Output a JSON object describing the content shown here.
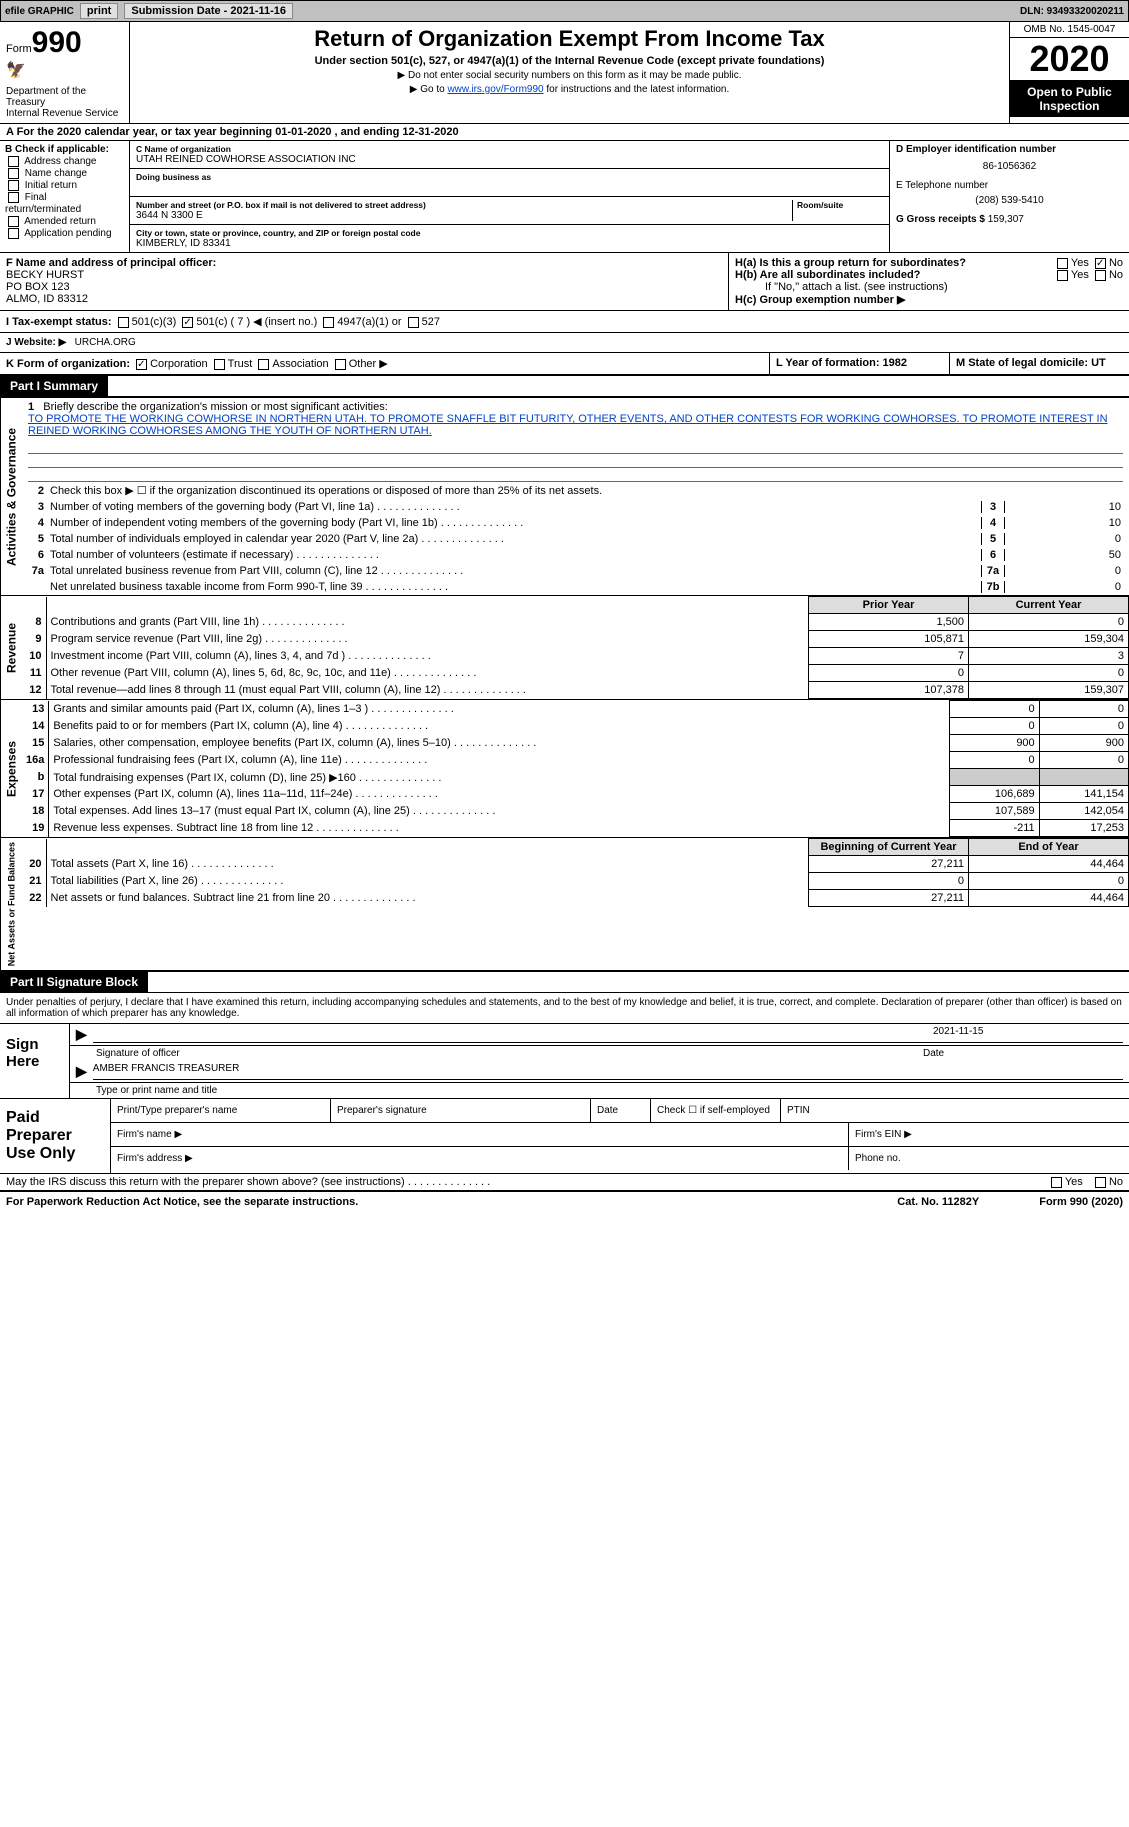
{
  "topbar": {
    "efile": "efile GRAPHIC",
    "print": "print",
    "sub_date_lbl": "Submission Date - 2021-11-16",
    "dln": "DLN: 93493320020211"
  },
  "header": {
    "form_lbl": "Form",
    "form_num": "990",
    "dept": "Department of the Treasury\nInternal Revenue Service",
    "title": "Return of Organization Exempt From Income Tax",
    "sub": "Under section 501(c), 527, or 4947(a)(1) of the Internal Revenue Code (except private foundations)",
    "note1": "▶ Do not enter social security numbers on this form as it may be made public.",
    "note2_pre": "▶ Go to ",
    "note2_link": "www.irs.gov/Form990",
    "note2_post": " for instructions and the latest information.",
    "omb": "OMB No. 1545-0047",
    "year": "2020",
    "insp": "Open to Public Inspection"
  },
  "line_a": "A For the 2020 calendar year, or tax year beginning 01-01-2020   , and ending 12-31-2020",
  "col_b": {
    "hdr": "B Check if applicable:",
    "items": [
      "Address change",
      "Name change",
      "Initial return",
      "Final return/terminated",
      "Amended return",
      "Application pending"
    ]
  },
  "col_c": {
    "name_lbl": "C Name of organization",
    "name": "UTAH REINED COWHORSE ASSOCIATION INC",
    "dba_lbl": "Doing business as",
    "addr_lbl": "Number and street (or P.O. box if mail is not delivered to street address)",
    "room_lbl": "Room/suite",
    "addr": "3644 N 3300 E",
    "city_lbl": "City or town, state or province, country, and ZIP or foreign postal code",
    "city": "KIMBERLY, ID  83341"
  },
  "col_d": {
    "ein_lbl": "D Employer identification number",
    "ein": "86-1056362",
    "tel_lbl": "E Telephone number",
    "tel": "(208) 539-5410",
    "gross_lbl": "G Gross receipts $",
    "gross": "159,307"
  },
  "row_f": {
    "lbl": "F  Name and address of principal officer:",
    "name": "BECKY HURST",
    "addr1": "PO BOX 123",
    "addr2": "ALMO, ID  83312"
  },
  "row_h": {
    "ha": "H(a)  Is this a group return for subordinates?",
    "hb": "H(b)  Are all subordinates included?",
    "hb_note": "If \"No,\" attach a list. (see instructions)",
    "hc": "H(c)  Group exemption number ▶",
    "yes": "Yes",
    "no": "No"
  },
  "row_i": {
    "lbl": "I   Tax-exempt status:",
    "o1": "501(c)(3)",
    "o2": "501(c) ( 7 ) ◀ (insert no.)",
    "o3": "4947(a)(1) or",
    "o4": "527"
  },
  "row_j": {
    "lbl": "J   Website: ▶",
    "val": "URCHA.ORG"
  },
  "row_k": {
    "lbl": "K Form of organization:",
    "o1": "Corporation",
    "o2": "Trust",
    "o3": "Association",
    "o4": "Other ▶",
    "l": "L Year of formation: 1982",
    "m": "M State of legal domicile: UT"
  },
  "part1": {
    "hdr": "Part I      Summary",
    "vert1": "Activities & Governance",
    "q1_lbl": "Briefly describe the organization's mission or most significant activities:",
    "q1_txt": "TO PROMOTE THE WORKING COWHORSE IN NORTHERN UTAH. TO PROMOTE SNAFFLE BIT FUTURITY, OTHER EVENTS, AND OTHER CONTESTS FOR WORKING COWHORSES. TO PROMOTE INTEREST IN REINED WORKING COWHORSES AMONG THE YOUTH OF NORTHERN UTAH.",
    "q2": "Check this box ▶ ☐  if the organization discontinued its operations or disposed of more than 25% of its net assets.",
    "lines": [
      {
        "n": "3",
        "t": "Number of voting members of the governing body (Part VI, line 1a)",
        "b": "3",
        "v": "10"
      },
      {
        "n": "4",
        "t": "Number of independent voting members of the governing body (Part VI, line 1b)",
        "b": "4",
        "v": "10"
      },
      {
        "n": "5",
        "t": "Total number of individuals employed in calendar year 2020 (Part V, line 2a)",
        "b": "5",
        "v": "0"
      },
      {
        "n": "6",
        "t": "Total number of volunteers (estimate if necessary)",
        "b": "6",
        "v": "50"
      },
      {
        "n": "7a",
        "t": "Total unrelated business revenue from Part VIII, column (C), line 12",
        "b": "7a",
        "v": "0"
      },
      {
        "n": "",
        "t": "Net unrelated business taxable income from Form 990-T, line 39",
        "b": "7b",
        "v": "0"
      }
    ],
    "col_prior": "Prior Year",
    "col_curr": "Current Year",
    "vert2": "Revenue",
    "rev": [
      {
        "n": "8",
        "t": "Contributions and grants (Part VIII, line 1h)",
        "p": "1,500",
        "c": "0"
      },
      {
        "n": "9",
        "t": "Program service revenue (Part VIII, line 2g)",
        "p": "105,871",
        "c": "159,304"
      },
      {
        "n": "10",
        "t": "Investment income (Part VIII, column (A), lines 3, 4, and 7d )",
        "p": "7",
        "c": "3"
      },
      {
        "n": "11",
        "t": "Other revenue (Part VIII, column (A), lines 5, 6d, 8c, 9c, 10c, and 11e)",
        "p": "0",
        "c": "0"
      },
      {
        "n": "12",
        "t": "Total revenue—add lines 8 through 11 (must equal Part VIII, column (A), line 12)",
        "p": "107,378",
        "c": "159,307"
      }
    ],
    "vert3": "Expenses",
    "exp": [
      {
        "n": "13",
        "t": "Grants and similar amounts paid (Part IX, column (A), lines 1–3 )",
        "p": "0",
        "c": "0"
      },
      {
        "n": "14",
        "t": "Benefits paid to or for members (Part IX, column (A), line 4)",
        "p": "0",
        "c": "0"
      },
      {
        "n": "15",
        "t": "Salaries, other compensation, employee benefits (Part IX, column (A), lines 5–10)",
        "p": "900",
        "c": "900"
      },
      {
        "n": "16a",
        "t": "Professional fundraising fees (Part IX, column (A), line 11e)",
        "p": "0",
        "c": "0"
      },
      {
        "n": "b",
        "t": "Total fundraising expenses (Part IX, column (D), line 25) ▶160",
        "p": "",
        "c": "",
        "shade": true
      },
      {
        "n": "17",
        "t": "Other expenses (Part IX, column (A), lines 11a–11d, 11f–24e)",
        "p": "106,689",
        "c": "141,154"
      },
      {
        "n": "18",
        "t": "Total expenses. Add lines 13–17 (must equal Part IX, column (A), line 25)",
        "p": "107,589",
        "c": "142,054"
      },
      {
        "n": "19",
        "t": "Revenue less expenses. Subtract line 18 from line 12",
        "p": "-211",
        "c": "17,253"
      }
    ],
    "vert4": "Net Assets or Fund Balances",
    "col_beg": "Beginning of Current Year",
    "col_end": "End of Year",
    "net": [
      {
        "n": "20",
        "t": "Total assets (Part X, line 16)",
        "p": "27,211",
        "c": "44,464"
      },
      {
        "n": "21",
        "t": "Total liabilities (Part X, line 26)",
        "p": "0",
        "c": "0"
      },
      {
        "n": "22",
        "t": "Net assets or fund balances. Subtract line 21 from line 20",
        "p": "27,211",
        "c": "44,464"
      }
    ]
  },
  "part2": {
    "hdr": "Part II     Signature Block",
    "txt": "Under penalties of perjury, I declare that I have examined this return, including accompanying schedules and statements, and to the best of my knowledge and belief, it is true, correct, and complete. Declaration of preparer (other than officer) is based on all information of which preparer has any knowledge.",
    "sign_lbl": "Sign Here",
    "sig_of": "Signature of officer",
    "date_lbl": "Date",
    "date": "2021-11-15",
    "name": "AMBER FRANCIS TREASURER",
    "name_lbl": "Type or print name and title",
    "paid_lbl": "Paid Preparer Use Only",
    "p1": "Print/Type preparer's name",
    "p2": "Preparer's signature",
    "p3": "Date",
    "p4": "Check ☐ if self-employed",
    "p5": "PTIN",
    "firm_name": "Firm's name   ▶",
    "firm_ein": "Firm's EIN ▶",
    "firm_addr": "Firm's address ▶",
    "phone": "Phone no."
  },
  "bottom": {
    "discuss": "May the IRS discuss this return with the preparer shown above? (see instructions)",
    "yes": "Yes",
    "no": "No"
  },
  "footer": {
    "l": "For Paperwork Reduction Act Notice, see the separate instructions.",
    "m": "Cat. No. 11282Y",
    "r": "Form 990 (2020)"
  }
}
